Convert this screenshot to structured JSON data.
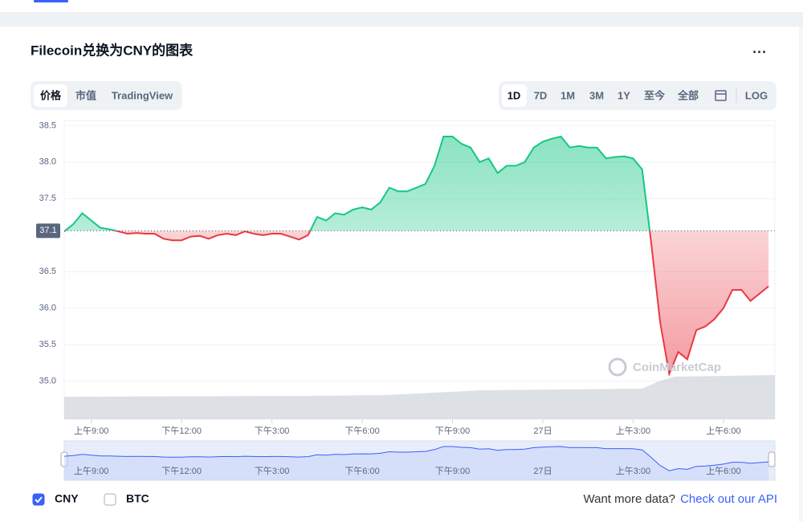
{
  "chart_data": {
    "type": "line",
    "title": "Filecoin兑换为CNY的图表",
    "tabs": [
      "价格",
      "市值",
      "TradingView"
    ],
    "ranges": [
      "1D",
      "7D",
      "1M",
      "3M",
      "1Y",
      "至今",
      "全部",
      "LOG"
    ],
    "values": [
      37.05,
      37.15,
      37.3,
      37.2,
      37.1,
      37.08,
      37.05,
      37.02,
      37.03,
      37.02,
      37.02,
      36.95,
      36.93,
      36.93,
      36.98,
      36.99,
      36.95,
      37.0,
      37.02,
      37.0,
      37.05,
      37.02,
      37.0,
      37.02,
      37.02,
      36.98,
      36.94,
      37.0,
      37.25,
      37.2,
      37.3,
      37.28,
      37.35,
      37.38,
      37.35,
      37.45,
      37.65,
      37.6,
      37.6,
      37.65,
      37.7,
      37.95,
      38.35,
      38.35,
      38.25,
      38.2,
      38.0,
      38.05,
      37.85,
      37.95,
      37.95,
      38.0,
      38.2,
      38.28,
      38.32,
      38.35,
      38.2,
      38.22,
      38.2,
      38.2,
      38.05,
      38.07,
      38.08,
      38.05,
      37.9,
      36.9,
      35.8,
      35.1,
      35.4,
      35.3,
      35.7,
      35.75,
      35.85,
      36.0,
      36.25,
      36.25,
      36.1,
      36.2,
      36.3
    ],
    "up_color": "#16c784",
    "down_color": "#ea3943",
    "baseline": {
      "value": 37.06,
      "label": "37.1"
    },
    "xlim": [
      0,
      78.7
    ],
    "ylim": [
      34.48,
      38.57
    ],
    "xticks": [
      {
        "value": 3,
        "label": "上午9:00"
      },
      {
        "value": 13,
        "label": "下午12:00"
      },
      {
        "value": 23,
        "label": "下午3:00"
      },
      {
        "value": 33,
        "label": "下午6:00"
      },
      {
        "value": 43,
        "label": "下午9:00"
      },
      {
        "value": 53,
        "label": "27日"
      },
      {
        "value": 63,
        "label": "上午3:00"
      },
      {
        "value": 73,
        "label": "上午6:00"
      }
    ],
    "yticks": [
      {
        "value": 35,
        "label": "35.0"
      },
      35.5,
      {
        "value": 36,
        "label": "36.0"
      },
      36.5,
      37.5,
      {
        "value": 38,
        "label": "38.0"
      },
      38.5
    ],
    "grid": true,
    "toggles": [
      {
        "label": "CNY",
        "checked": true
      },
      {
        "label": "BTC",
        "checked": false
      }
    ],
    "footer": {
      "prompt": "Want more data?",
      "link": "Check out our API"
    },
    "watermark": "CoinMarketCap"
  }
}
